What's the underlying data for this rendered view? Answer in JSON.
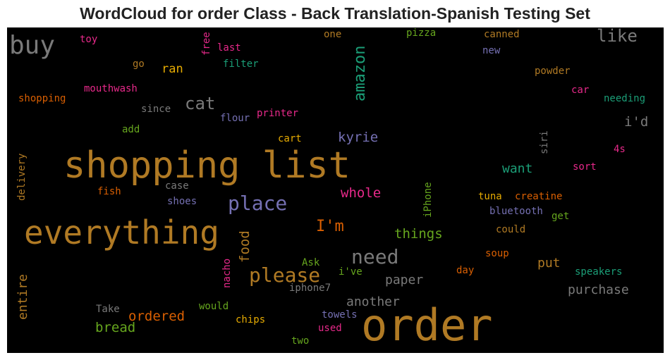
{
  "title": "WordCloud for order Class - Back Translation-Spanish Testing Set",
  "words": [
    {
      "text": "shopping list",
      "color": "#b07a24"
    },
    {
      "text": "order",
      "color": "#b07a24"
    },
    {
      "text": "everything",
      "color": "#b07a24"
    },
    {
      "text": "buy",
      "color": "#7a7a7a"
    },
    {
      "text": "place",
      "color": "#7570b3"
    },
    {
      "text": "need",
      "color": "#7a7a7a"
    },
    {
      "text": "please",
      "color": "#b07a24"
    },
    {
      "text": "amazon",
      "color": "#1b9e77"
    },
    {
      "text": "like",
      "color": "#7a7a7a"
    },
    {
      "text": "cat",
      "color": "#7a7a7a"
    },
    {
      "text": "I'm",
      "color": "#d95f02"
    },
    {
      "text": "whole",
      "color": "#e7298a"
    },
    {
      "text": "kyrie",
      "color": "#7570b3"
    },
    {
      "text": "things",
      "color": "#66a61e"
    },
    {
      "text": "i'd",
      "color": "#7a7a7a"
    },
    {
      "text": "want",
      "color": "#1b9e77"
    },
    {
      "text": "food",
      "color": "#b07a24"
    },
    {
      "text": "entire",
      "color": "#b07a24"
    },
    {
      "text": "ordered",
      "color": "#d95f02"
    },
    {
      "text": "bread",
      "color": "#66a61e"
    },
    {
      "text": "another",
      "color": "#7a7a7a"
    },
    {
      "text": "paper",
      "color": "#7a7a7a"
    },
    {
      "text": "purchase",
      "color": "#7a7a7a"
    },
    {
      "text": "put",
      "color": "#b07a24"
    },
    {
      "text": "ran",
      "color": "#e6ab02"
    },
    {
      "text": "shopping",
      "color": "#d95f02"
    },
    {
      "text": "mouthwash",
      "color": "#e7298a"
    },
    {
      "text": "toy",
      "color": "#e7298a"
    },
    {
      "text": "go",
      "color": "#b07a24"
    },
    {
      "text": "free",
      "color": "#e7298a"
    },
    {
      "text": "last",
      "color": "#e7298a"
    },
    {
      "text": "filter",
      "color": "#1b9e77"
    },
    {
      "text": "one",
      "color": "#b07a24"
    },
    {
      "text": "pizza",
      "color": "#66a61e"
    },
    {
      "text": "canned",
      "color": "#b07a24"
    },
    {
      "text": "new",
      "color": "#7570b3"
    },
    {
      "text": "powder",
      "color": "#b07a24"
    },
    {
      "text": "car",
      "color": "#e7298a"
    },
    {
      "text": "needing",
      "color": "#1b9e77"
    },
    {
      "text": "since",
      "color": "#7a7a7a"
    },
    {
      "text": "flour",
      "color": "#7570b3"
    },
    {
      "text": "printer",
      "color": "#e7298a"
    },
    {
      "text": "add",
      "color": "#66a61e"
    },
    {
      "text": "cart",
      "color": "#e6ab02"
    },
    {
      "text": "siri",
      "color": "#7a7a7a"
    },
    {
      "text": "4s",
      "color": "#e7298a"
    },
    {
      "text": "sort",
      "color": "#e7298a"
    },
    {
      "text": "delivery",
      "color": "#b07a24"
    },
    {
      "text": "case",
      "color": "#7a7a7a"
    },
    {
      "text": "fish",
      "color": "#d95f02"
    },
    {
      "text": "shoes",
      "color": "#7570b3"
    },
    {
      "text": "iPhone",
      "color": "#66a61e"
    },
    {
      "text": "tuna",
      "color": "#e6ab02"
    },
    {
      "text": "creatine",
      "color": "#d95f02"
    },
    {
      "text": "bluetooth",
      "color": "#7570b3"
    },
    {
      "text": "get",
      "color": "#66a61e"
    },
    {
      "text": "could",
      "color": "#b07a24"
    },
    {
      "text": "soup",
      "color": "#d95f02"
    },
    {
      "text": "nacho",
      "color": "#e7298a"
    },
    {
      "text": "Ask",
      "color": "#66a61e"
    },
    {
      "text": "i've",
      "color": "#66a61e"
    },
    {
      "text": "iphone7",
      "color": "#7a7a7a"
    },
    {
      "text": "day",
      "color": "#d95f02"
    },
    {
      "text": "speakers",
      "color": "#1b9e77"
    },
    {
      "text": "Take",
      "color": "#7a7a7a"
    },
    {
      "text": "would",
      "color": "#66a61e"
    },
    {
      "text": "chips",
      "color": "#e6ab02"
    },
    {
      "text": "towels",
      "color": "#7570b3"
    },
    {
      "text": "used",
      "color": "#e7298a"
    },
    {
      "text": "two",
      "color": "#66a61e"
    }
  ]
}
